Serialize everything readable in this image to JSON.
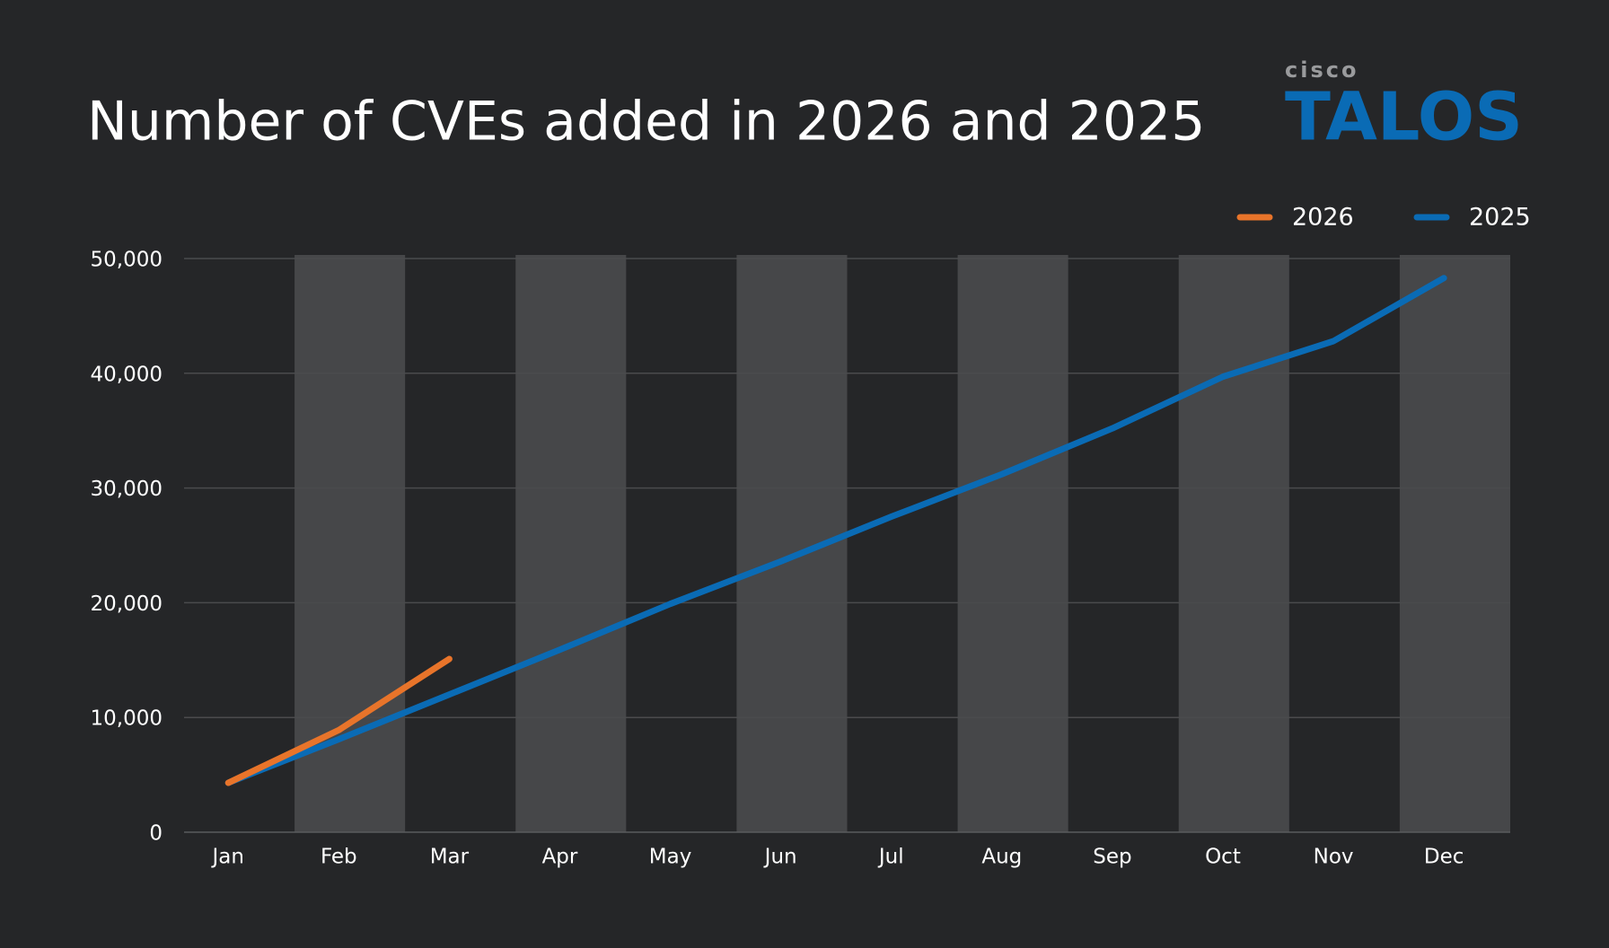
{
  "chart_data": {
    "type": "line",
    "title": "Number of CVEs added in 2026 and 2025",
    "logo": {
      "brand": "cisco",
      "product": "TALOS"
    },
    "categories": [
      "Jan",
      "Feb",
      "Mar",
      "Apr",
      "May",
      "Jun",
      "Jul",
      "Aug",
      "Sep",
      "Oct",
      "Nov",
      "Dec"
    ],
    "series": [
      {
        "name": "2026",
        "color": "#e8742a",
        "values": [
          4300,
          8900,
          15100,
          null,
          null,
          null,
          null,
          null,
          null,
          null,
          null,
          null
        ]
      },
      {
        "name": "2025",
        "color": "#0a6bb5",
        "values": [
          4300,
          8100,
          12000,
          15900,
          19900,
          23600,
          27500,
          31200,
          35200,
          39700,
          42800,
          48300
        ]
      }
    ],
    "ylim": [
      0,
      50000
    ],
    "yticks": [
      0,
      {
        "value": 10000,
        "label": "10,000"
      },
      {
        "value": 20000,
        "label": "20,000"
      },
      {
        "value": 30000,
        "label": "30,000"
      },
      {
        "value": 40000,
        "label": "40,000"
      },
      {
        "value": 50000,
        "label": "50,000"
      }
    ],
    "grid": true,
    "legend": "top-right"
  }
}
